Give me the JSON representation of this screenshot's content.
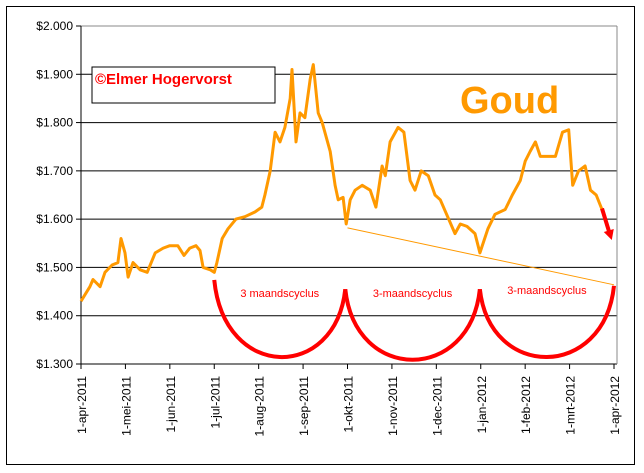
{
  "chart_data": {
    "type": "line",
    "title": "Goud",
    "watermark": "©Elmer Hogervorst",
    "xlabel": "",
    "ylabel": "",
    "ylim": [
      1300,
      2000
    ],
    "y_ticks": [
      1300,
      1400,
      1500,
      1600,
      1700,
      1800,
      1900,
      2000
    ],
    "y_tick_labels": [
      "$1.300",
      "$1.400",
      "$1.500",
      "$1.600",
      "$1.700",
      "$1.800",
      "$1.900",
      "$2.000"
    ],
    "x_unit": "months since 1-apr-2011",
    "xlim": [
      0,
      12
    ],
    "x_tick_labels": [
      "1-apr-2011",
      "1-mei-2011",
      "1-jun-2011",
      "1-jul-2011",
      "1-aug-2011",
      "1-sep-2011",
      "1-okt-2011",
      "1-nov-2011",
      "1-dec-2011",
      "1-jan-2012",
      "1-feb-2012",
      "1-mrt-2012",
      "1-apr-2012"
    ],
    "grid": true,
    "colors": {
      "series": "#FF9900",
      "annotation": "#FF0000",
      "trend": "#FF9900",
      "grid": "#000000"
    },
    "series": [
      {
        "name": "Goud",
        "x": [
          0,
          0.2,
          0.27,
          0.43,
          0.54,
          0.7,
          0.83,
          0.9,
          0.99,
          1.06,
          1.17,
          1.33,
          1.49,
          1.67,
          1.85,
          2.0,
          2.18,
          2.32,
          2.45,
          2.59,
          2.68,
          2.75,
          2.91,
          3.0,
          3.06,
          3.18,
          3.31,
          3.49,
          3.69,
          3.92,
          4.07,
          4.14,
          4.26,
          4.37,
          4.48,
          4.59,
          4.71,
          4.75,
          4.84,
          4.93,
          5.04,
          5.16,
          5.23,
          5.34,
          5.43,
          5.61,
          5.72,
          5.79,
          5.9,
          5.97,
          6.06,
          6.17,
          6.33,
          6.51,
          6.64,
          6.78,
          6.85,
          6.96,
          7.14,
          7.27,
          7.41,
          7.52,
          7.66,
          7.82,
          7.97,
          8.09,
          8.42,
          8.54,
          8.69,
          8.87,
          8.98,
          9.16,
          9.32,
          9.55,
          9.71,
          9.89,
          10.0,
          10.11,
          10.23,
          10.34,
          10.52,
          10.68,
          10.84,
          10.98,
          11.07,
          11.2,
          11.35,
          11.47,
          11.6,
          11.73
        ],
        "y": [
          1430,
          1460,
          1475,
          1460,
          1490,
          1505,
          1510,
          1560,
          1530,
          1480,
          1510,
          1495,
          1490,
          1530,
          1540,
          1545,
          1545,
          1525,
          1540,
          1545,
          1535,
          1500,
          1495,
          1490,
          1510,
          1560,
          1580,
          1600,
          1605,
          1615,
          1625,
          1650,
          1700,
          1780,
          1760,
          1790,
          1850,
          1910,
          1760,
          1820,
          1810,
          1890,
          1920,
          1820,
          1800,
          1740,
          1670,
          1640,
          1645,
          1590,
          1640,
          1660,
          1670,
          1660,
          1625,
          1710,
          1690,
          1760,
          1790,
          1780,
          1680,
          1660,
          1700,
          1690,
          1650,
          1640,
          1570,
          1590,
          1585,
          1570,
          1530,
          1580,
          1610,
          1620,
          1650,
          1680,
          1720,
          1740,
          1760,
          1730,
          1730,
          1730,
          1780,
          1785,
          1670,
          1700,
          1710,
          1660,
          1650,
          1620
        ]
      }
    ],
    "annotations": {
      "trend_line": {
        "from": [
          6.0,
          1582
        ],
        "to": [
          12.0,
          1464
        ]
      },
      "arrow": {
        "from": [
          11.73,
          1620
        ],
        "to": [
          11.95,
          1590
        ]
      },
      "cycles": [
        {
          "label": "3 maandscyclus",
          "start": [
            3.0,
            1474
          ],
          "end": [
            5.95,
            1455
          ],
          "low": 1380
        },
        {
          "label": "3-maandscyclus",
          "start": [
            5.95,
            1455
          ],
          "end": [
            8.98,
            1455
          ],
          "low": 1373
        },
        {
          "label": "3-maandscyclus",
          "start": [
            8.98,
            1455
          ],
          "end": [
            12.0,
            1462
          ],
          "low": 1378
        }
      ]
    }
  }
}
